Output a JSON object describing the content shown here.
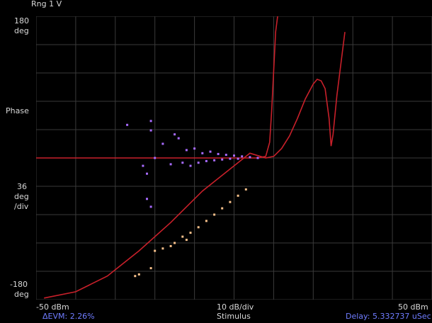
{
  "trace_title": "Rng 1  V",
  "y_axis": {
    "top_value": "180",
    "top_unit": "deg",
    "name": "Phase",
    "scale_value": "36",
    "scale_unit": "deg",
    "scale_per": "/div",
    "bottom_value": "-180",
    "bottom_unit": "deg"
  },
  "x_axis": {
    "start": "-50 dBm",
    "scale": "10 dB/div",
    "end": "50 dBm",
    "name": "Stimulus"
  },
  "readouts": {
    "evm": "ΔEVM: 2.26%",
    "delay": "Delay: 5.332737 uSec"
  },
  "colors": {
    "background": "#000000",
    "grid": "#3a3a3a",
    "fit_curve": "#c8202a",
    "purple_scatter": "#a86bff",
    "orange_scatter": "#f7c08a",
    "readout_blue": "#6f7cff"
  },
  "chart_data": {
    "type": "scatter",
    "xlim": [
      -50,
      50
    ],
    "ylim": [
      -180,
      180
    ],
    "x_divisions": 10,
    "y_divisions": 10,
    "grid": true,
    "series": [
      {
        "kind": "line",
        "color": "#c8202a",
        "points": [
          [
            -48,
            -178
          ],
          [
            -40,
            -170
          ],
          [
            -32,
            -150
          ],
          [
            -24,
            -118
          ],
          [
            -16,
            -82
          ],
          [
            -8,
            -42
          ],
          [
            0,
            -10
          ],
          [
            4,
            6
          ],
          [
            8,
            0
          ],
          [
            10,
            2
          ],
          [
            12,
            12
          ],
          [
            14,
            28
          ],
          [
            16,
            50
          ],
          [
            18,
            75
          ],
          [
            20,
            94
          ],
          [
            21,
            100
          ],
          [
            22,
            98
          ],
          [
            23,
            88
          ],
          [
            24,
            50
          ],
          [
            24.5,
            15
          ],
          [
            25,
            30
          ],
          [
            26,
            80
          ],
          [
            27,
            120
          ],
          [
            28,
            160
          ]
        ]
      },
      {
        "kind": "line",
        "color": "#c8202a",
        "points": [
          [
            -50,
            0
          ],
          [
            -20,
            0
          ],
          [
            0,
            0
          ],
          [
            6,
            0
          ],
          [
            8,
            2
          ],
          [
            9,
            20
          ],
          [
            9.5,
            60
          ],
          [
            10,
            110
          ],
          [
            10.5,
            160
          ],
          [
            11,
            180
          ]
        ]
      },
      {
        "kind": "points",
        "color": "#a86bff",
        "points": [
          [
            -27,
            42
          ],
          [
            -21,
            35
          ],
          [
            -21,
            47
          ],
          [
            -23,
            -10
          ],
          [
            -22,
            -20
          ],
          [
            -20,
            0
          ],
          [
            -22,
            -52
          ],
          [
            -21,
            -62
          ],
          [
            -18,
            18
          ],
          [
            -15,
            30
          ],
          [
            -14,
            25
          ],
          [
            -12,
            10
          ],
          [
            -10,
            12
          ],
          [
            -8,
            6
          ],
          [
            -6,
            8
          ],
          [
            -4,
            5
          ],
          [
            -2,
            4
          ],
          [
            0,
            3
          ],
          [
            2,
            2
          ],
          [
            4,
            1
          ],
          [
            6,
            0
          ],
          [
            -16,
            -8
          ],
          [
            -13,
            -6
          ],
          [
            -11,
            -10
          ],
          [
            -9,
            -6
          ],
          [
            -7,
            -4
          ],
          [
            -5,
            -3
          ],
          [
            -3,
            -2
          ],
          [
            -1,
            -1
          ],
          [
            1,
            -1
          ]
        ]
      },
      {
        "kind": "points",
        "color": "#f7c08a",
        "points": [
          [
            -20,
            -118
          ],
          [
            -18,
            -115
          ],
          [
            -15,
            -108
          ],
          [
            -13,
            -100
          ],
          [
            -11,
            -95
          ],
          [
            -9,
            -88
          ],
          [
            -7,
            -80
          ],
          [
            -5,
            -72
          ],
          [
            -3,
            -64
          ],
          [
            -1,
            -56
          ],
          [
            1,
            -48
          ],
          [
            3,
            -40
          ],
          [
            -21,
            -140
          ],
          [
            -25,
            -150
          ],
          [
            -24,
            -148
          ],
          [
            -16,
            -112
          ],
          [
            -12,
            -104
          ]
        ]
      }
    ]
  }
}
